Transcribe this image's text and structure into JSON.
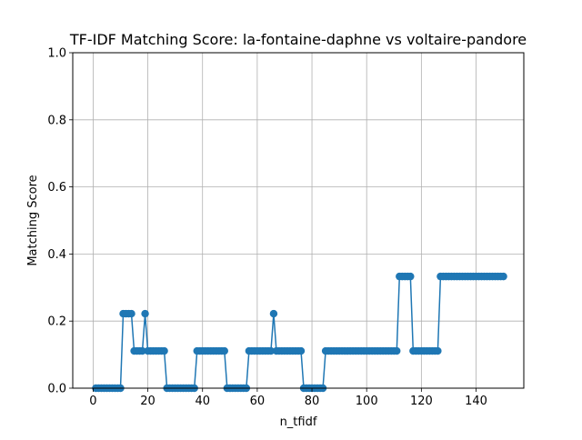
{
  "chart_data": {
    "type": "line",
    "title": "TF-IDF Matching Score: la-fontaine-daphne vs voltaire-pandore",
    "xlabel": "n_tfidf",
    "ylabel": "Matching Score",
    "xlim": [
      -7.45,
      157.45
    ],
    "ylim": [
      0,
      1.0
    ],
    "xticks": [
      0,
      20,
      40,
      60,
      80,
      100,
      120,
      140
    ],
    "yticks": [
      0.0,
      0.2,
      0.4,
      0.6,
      0.8,
      1.0
    ],
    "xtick_labels": [
      "0",
      "20",
      "40",
      "60",
      "80",
      "100",
      "120",
      "140"
    ],
    "ytick_labels": [
      "0.0",
      "0.2",
      "0.4",
      "0.6",
      "0.8",
      "1.0"
    ],
    "grid": true,
    "marker": "circle",
    "series": [
      {
        "color": "#1f77b4",
        "x": [
          1,
          2,
          3,
          4,
          5,
          6,
          7,
          8,
          9,
          10,
          11,
          12,
          13,
          14,
          15,
          16,
          17,
          18,
          19,
          20,
          21,
          22,
          23,
          24,
          25,
          26,
          27,
          28,
          29,
          30,
          31,
          32,
          33,
          34,
          35,
          36,
          37,
          38,
          39,
          40,
          41,
          42,
          43,
          44,
          45,
          46,
          47,
          48,
          49,
          50,
          51,
          52,
          53,
          54,
          55,
          56,
          57,
          58,
          59,
          60,
          61,
          62,
          63,
          64,
          65,
          66,
          67,
          68,
          69,
          70,
          71,
          72,
          73,
          74,
          75,
          76,
          77,
          78,
          79,
          80,
          81,
          82,
          83,
          84,
          85,
          86,
          87,
          88,
          89,
          90,
          91,
          92,
          93,
          94,
          95,
          96,
          97,
          98,
          99,
          100,
          101,
          102,
          103,
          104,
          105,
          106,
          107,
          108,
          109,
          110,
          111,
          112,
          113,
          114,
          115,
          116,
          117,
          118,
          119,
          120,
          121,
          122,
          123,
          124,
          125,
          126,
          127,
          128,
          129,
          130,
          131,
          132,
          133,
          134,
          135,
          136,
          137,
          138,
          139,
          140,
          141,
          142,
          143,
          144,
          145,
          146,
          147,
          148,
          149,
          150
        ],
        "y": [
          0,
          0,
          0,
          0,
          0,
          0,
          0,
          0,
          0,
          0,
          0.222,
          0.222,
          0.222,
          0.222,
          0.111,
          0.111,
          0.111,
          0.111,
          0.222,
          0.111,
          0.111,
          0.111,
          0.111,
          0.111,
          0.111,
          0.111,
          0,
          0,
          0,
          0,
          0,
          0,
          0,
          0,
          0,
          0,
          0,
          0.111,
          0.111,
          0.111,
          0.111,
          0.111,
          0.111,
          0.111,
          0.111,
          0.111,
          0.111,
          0.111,
          0,
          0,
          0,
          0,
          0,
          0,
          0,
          0,
          0.111,
          0.111,
          0.111,
          0.111,
          0.111,
          0.111,
          0.111,
          0.111,
          0.111,
          0.222,
          0.111,
          0.111,
          0.111,
          0.111,
          0.111,
          0.111,
          0.111,
          0.111,
          0.111,
          0.111,
          0,
          0,
          0,
          0,
          0,
          0,
          0,
          0,
          0.111,
          0.111,
          0.111,
          0.111,
          0.111,
          0.111,
          0.111,
          0.111,
          0.111,
          0.111,
          0.111,
          0.111,
          0.111,
          0.111,
          0.111,
          0.111,
          0.111,
          0.111,
          0.111,
          0.111,
          0.111,
          0.111,
          0.111,
          0.111,
          0.111,
          0.111,
          0.111,
          0.333,
          0.333,
          0.333,
          0.333,
          0.333,
          0.111,
          0.111,
          0.111,
          0.111,
          0.111,
          0.111,
          0.111,
          0.111,
          0.111,
          0.111,
          0.333,
          0.333,
          0.333,
          0.333,
          0.333,
          0.333,
          0.333,
          0.333,
          0.333,
          0.333,
          0.333,
          0.333,
          0.333,
          0.333,
          0.333,
          0.333,
          0.333,
          0.333,
          0.333,
          0.333,
          0.333,
          0.333,
          0.333,
          0.333
        ]
      }
    ]
  }
}
